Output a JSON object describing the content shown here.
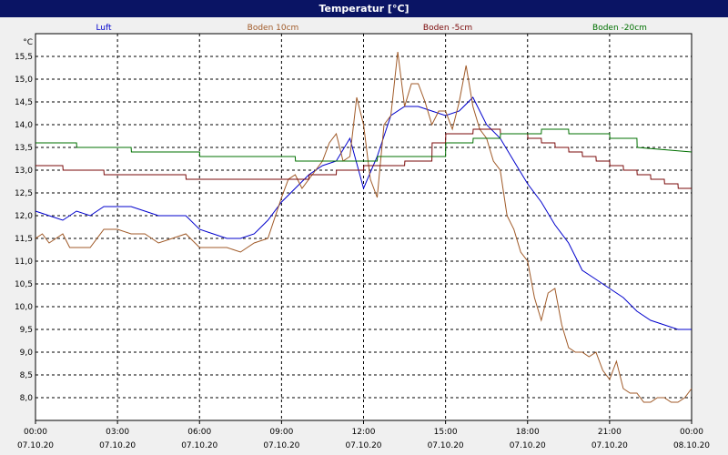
{
  "window": {
    "title": "Temperatur [°C]"
  },
  "chart_data": {
    "type": "line",
    "title": "Temperatur [°C]",
    "ylabel": "°C",
    "ylim": [
      7.5,
      16.0
    ],
    "y_ticks": [
      "15,5",
      "15,0",
      "14,5",
      "14,0",
      "13,5",
      "13,0",
      "12,5",
      "12,0",
      "11,5",
      "11,0",
      "10,5",
      "10,0",
      "9,5",
      "9,0",
      "8,5",
      "8,0"
    ],
    "x_ticks": [
      {
        "time": "00:00",
        "date": "07.10.20"
      },
      {
        "time": "03:00",
        "date": "07.10.20"
      },
      {
        "time": "06:00",
        "date": "07.10.20"
      },
      {
        "time": "09:00",
        "date": "07.10.20"
      },
      {
        "time": "12:00",
        "date": "07.10.20"
      },
      {
        "time": "15:00",
        "date": "07.10.20"
      },
      {
        "time": "18:00",
        "date": "07.10.20"
      },
      {
        "time": "21:00",
        "date": "07.10.20"
      },
      {
        "time": "00:00",
        "date": "08.10.20"
      }
    ],
    "grid": true,
    "legend": "top",
    "series": [
      {
        "name": "Luft",
        "color": "#0000cc",
        "x_hours": [
          0,
          0.5,
          1,
          1.5,
          2,
          2.5,
          3,
          3.5,
          4,
          4.5,
          5,
          5.5,
          6,
          6.5,
          7,
          7.5,
          8,
          8.5,
          9,
          9.5,
          10,
          10.5,
          11,
          11.5,
          12,
          12.5,
          13,
          13.5,
          14,
          14.5,
          15,
          15.5,
          16,
          16.5,
          17,
          17.5,
          18,
          18.5,
          19,
          19.5,
          20,
          20.5,
          21,
          21.5,
          22,
          22.5,
          23,
          23.5,
          24
        ],
        "values": [
          12.1,
          12.0,
          11.9,
          12.1,
          12.0,
          12.2,
          12.2,
          12.2,
          12.1,
          12.0,
          12.0,
          12.0,
          11.7,
          11.6,
          11.5,
          11.5,
          11.6,
          11.9,
          12.3,
          12.6,
          12.9,
          13.1,
          13.2,
          13.7,
          12.6,
          13.3,
          14.2,
          14.4,
          14.4,
          14.3,
          14.2,
          14.3,
          14.6,
          14.0,
          13.7,
          13.2,
          12.7,
          12.3,
          11.8,
          11.4,
          10.8,
          10.6,
          10.4,
          10.2,
          9.9,
          9.7,
          9.6,
          9.5,
          9.5
        ]
      },
      {
        "name": "Boden 10cm",
        "color": "#a05a28",
        "x_hours": [
          0,
          0.25,
          0.5,
          0.75,
          1,
          1.25,
          1.5,
          2,
          2.5,
          3,
          3.5,
          4,
          4.5,
          5,
          5.5,
          6,
          6.5,
          7,
          7.5,
          8,
          8.5,
          9,
          9.25,
          9.5,
          9.75,
          10,
          10.25,
          10.5,
          10.75,
          11,
          11.25,
          11.5,
          11.75,
          12,
          12.25,
          12.5,
          12.75,
          13,
          13.25,
          13.5,
          13.75,
          14,
          14.25,
          14.5,
          14.75,
          15,
          15.25,
          15.5,
          15.75,
          16,
          16.25,
          16.5,
          16.75,
          17,
          17.25,
          17.5,
          17.75,
          18,
          18.25,
          18.5,
          18.75,
          19,
          19.25,
          19.5,
          19.75,
          20,
          20.25,
          20.5,
          20.75,
          21,
          21.25,
          21.5,
          21.75,
          22,
          22.25,
          22.5,
          22.75,
          23,
          23.25,
          23.5,
          23.75,
          24
        ],
        "values": [
          11.5,
          11.6,
          11.4,
          11.5,
          11.6,
          11.3,
          11.3,
          11.3,
          11.7,
          11.7,
          11.6,
          11.6,
          11.4,
          11.5,
          11.6,
          11.3,
          11.3,
          11.3,
          11.2,
          11.4,
          11.5,
          12.4,
          12.8,
          12.9,
          12.6,
          12.8,
          13.0,
          13.2,
          13.6,
          13.8,
          13.2,
          13.3,
          14.6,
          14.0,
          12.8,
          12.4,
          14.0,
          14.2,
          15.6,
          14.4,
          14.9,
          14.9,
          14.5,
          14.0,
          14.3,
          14.3,
          13.9,
          14.5,
          15.3,
          14.4,
          13.9,
          13.7,
          13.2,
          13.0,
          12.0,
          11.7,
          11.2,
          11.0,
          10.2,
          9.7,
          10.3,
          10.4,
          9.6,
          9.1,
          9.0,
          9.0,
          8.9,
          9.0,
          8.6,
          8.4,
          8.8,
          8.2,
          8.1,
          8.1,
          7.9,
          7.9,
          8.0,
          8.0,
          7.9,
          7.9,
          8.0,
          8.2
        ]
      },
      {
        "name": "Boden -5cm",
        "color": "#7a0a0a",
        "x_hours": [
          0,
          1,
          1.01,
          2.5,
          2.51,
          5.5,
          5.51,
          10,
          10.01,
          11,
          11.01,
          12,
          12.01,
          13.5,
          13.51,
          14.5,
          14.51,
          15,
          15.01,
          16,
          16.01,
          17,
          17.01,
          18,
          18.01,
          18.5,
          18.51,
          19,
          19.01,
          19.5,
          19.51,
          20,
          20.01,
          20.5,
          20.51,
          21,
          21.01,
          21.5,
          21.51,
          22,
          22.01,
          22.5,
          22.51,
          23,
          23.01,
          23.5,
          23.51,
          24
        ],
        "values": [
          13.1,
          13.1,
          13.0,
          13.0,
          12.9,
          12.9,
          12.8,
          12.8,
          12.9,
          12.9,
          13.0,
          13.0,
          13.1,
          13.1,
          13.2,
          13.2,
          13.6,
          13.6,
          13.8,
          13.8,
          13.9,
          13.9,
          13.8,
          13.8,
          13.7,
          13.7,
          13.6,
          13.6,
          13.5,
          13.5,
          13.4,
          13.4,
          13.3,
          13.3,
          13.2,
          13.2,
          13.1,
          13.1,
          13.0,
          13.0,
          12.9,
          12.9,
          12.8,
          12.8,
          12.7,
          12.7,
          12.6,
          12.6
        ]
      },
      {
        "name": "Boden -20cm",
        "color": "#007000",
        "x_hours": [
          0,
          1.5,
          1.51,
          3.5,
          3.51,
          6,
          6.01,
          9.5,
          9.51,
          12.5,
          12.51,
          15,
          15.01,
          16,
          16.01,
          17,
          17.01,
          18.5,
          18.51,
          19.5,
          19.51,
          21,
          21.01,
          22,
          22.01,
          24
        ],
        "values": [
          13.6,
          13.6,
          13.5,
          13.5,
          13.4,
          13.4,
          13.3,
          13.3,
          13.2,
          13.2,
          13.3,
          13.3,
          13.6,
          13.6,
          13.7,
          13.7,
          13.8,
          13.8,
          13.9,
          13.9,
          13.8,
          13.8,
          13.7,
          13.7,
          13.5,
          13.4
        ]
      }
    ]
  }
}
